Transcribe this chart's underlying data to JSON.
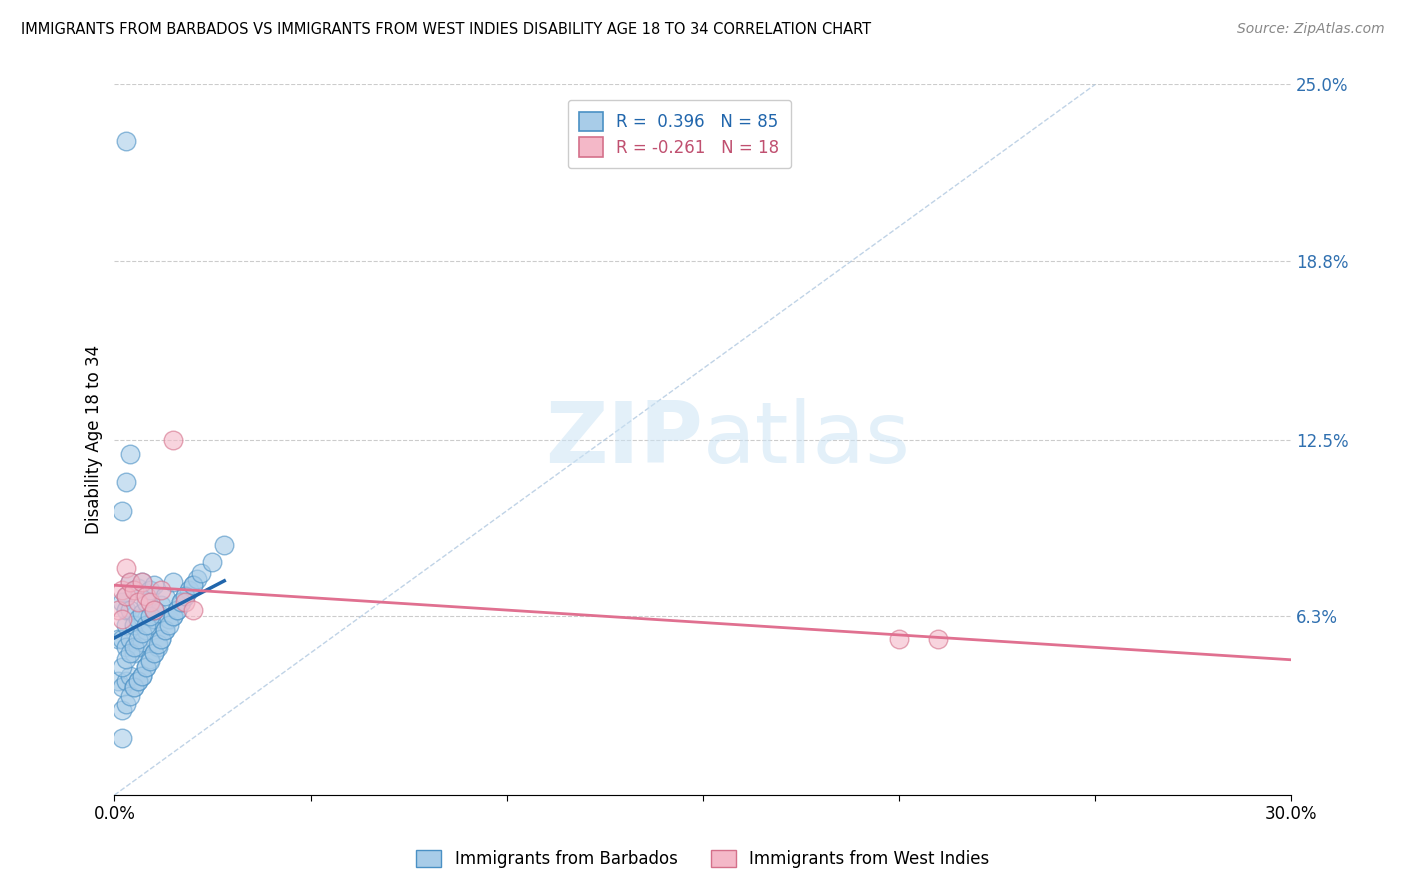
{
  "title": "IMMIGRANTS FROM BARBADOS VS IMMIGRANTS FROM WEST INDIES DISABILITY AGE 18 TO 34 CORRELATION CHART",
  "source": "Source: ZipAtlas.com",
  "ylabel": "Disability Age 18 to 34",
  "xlim": [
    0.0,
    0.3
  ],
  "ylim": [
    0.0,
    0.25
  ],
  "xtick_vals": [
    0.0,
    0.05,
    0.1,
    0.15,
    0.2,
    0.25,
    0.3
  ],
  "xticklabels": [
    "0.0%",
    "",
    "",
    "",
    "",
    "",
    "30.0%"
  ],
  "ytick_right_labels": [
    "25.0%",
    "18.8%",
    "12.5%",
    "6.3%",
    ""
  ],
  "ytick_right_values": [
    0.25,
    0.188,
    0.125,
    0.063,
    0.0
  ],
  "color_barbados_fill": "#a8cce8",
  "color_barbados_edge": "#4a90c4",
  "color_west_indies_fill": "#f4b8c8",
  "color_west_indies_edge": "#d4708a",
  "color_trend_barbados": "#2166ac",
  "color_trend_west_indies": "#e07090",
  "color_diagonal": "#b0c8e0",
  "legend_label_barbados": "Immigrants from Barbados",
  "legend_label_west_indies": "Immigrants from West Indies",
  "watermark_zip": "ZIP",
  "watermark_atlas": "atlas",
  "barbados_x": [
    0.001,
    0.001,
    0.002,
    0.002,
    0.002,
    0.003,
    0.003,
    0.003,
    0.003,
    0.003,
    0.004,
    0.004,
    0.004,
    0.004,
    0.005,
    0.005,
    0.005,
    0.005,
    0.006,
    0.006,
    0.006,
    0.006,
    0.007,
    0.007,
    0.007,
    0.007,
    0.008,
    0.008,
    0.008,
    0.009,
    0.009,
    0.009,
    0.01,
    0.01,
    0.01,
    0.011,
    0.011,
    0.012,
    0.012,
    0.013,
    0.013,
    0.014,
    0.015,
    0.015,
    0.016,
    0.017,
    0.018,
    0.019,
    0.02,
    0.021,
    0.002,
    0.002,
    0.003,
    0.003,
    0.004,
    0.004,
    0.005,
    0.005,
    0.006,
    0.006,
    0.007,
    0.007,
    0.008,
    0.008,
    0.009,
    0.009,
    0.01,
    0.01,
    0.011,
    0.012,
    0.013,
    0.014,
    0.015,
    0.016,
    0.017,
    0.018,
    0.02,
    0.022,
    0.025,
    0.028,
    0.002,
    0.003,
    0.004,
    0.003,
    0.002
  ],
  "barbados_y": [
    0.04,
    0.055,
    0.038,
    0.055,
    0.068,
    0.04,
    0.052,
    0.06,
    0.065,
    0.07,
    0.042,
    0.055,
    0.065,
    0.075,
    0.038,
    0.05,
    0.06,
    0.072,
    0.04,
    0.052,
    0.062,
    0.073,
    0.042,
    0.054,
    0.064,
    0.075,
    0.045,
    0.058,
    0.068,
    0.048,
    0.06,
    0.072,
    0.05,
    0.062,
    0.074,
    0.052,
    0.064,
    0.055,
    0.067,
    0.058,
    0.07,
    0.062,
    0.063,
    0.075,
    0.065,
    0.068,
    0.07,
    0.072,
    0.074,
    0.076,
    0.03,
    0.045,
    0.032,
    0.048,
    0.035,
    0.05,
    0.038,
    0.052,
    0.04,
    0.055,
    0.042,
    0.057,
    0.045,
    0.06,
    0.047,
    0.063,
    0.05,
    0.065,
    0.053,
    0.055,
    0.058,
    0.06,
    0.063,
    0.065,
    0.068,
    0.07,
    0.074,
    0.078,
    0.082,
    0.088,
    0.1,
    0.11,
    0.12,
    0.23,
    0.02
  ],
  "west_indies_x": [
    0.001,
    0.002,
    0.002,
    0.003,
    0.003,
    0.004,
    0.005,
    0.006,
    0.007,
    0.008,
    0.009,
    0.01,
    0.012,
    0.015,
    0.018,
    0.02,
    0.2,
    0.21
  ],
  "west_indies_y": [
    0.065,
    0.062,
    0.072,
    0.07,
    0.08,
    0.075,
    0.072,
    0.068,
    0.075,
    0.07,
    0.068,
    0.065,
    0.072,
    0.125,
    0.068,
    0.065,
    0.055,
    0.055
  ]
}
